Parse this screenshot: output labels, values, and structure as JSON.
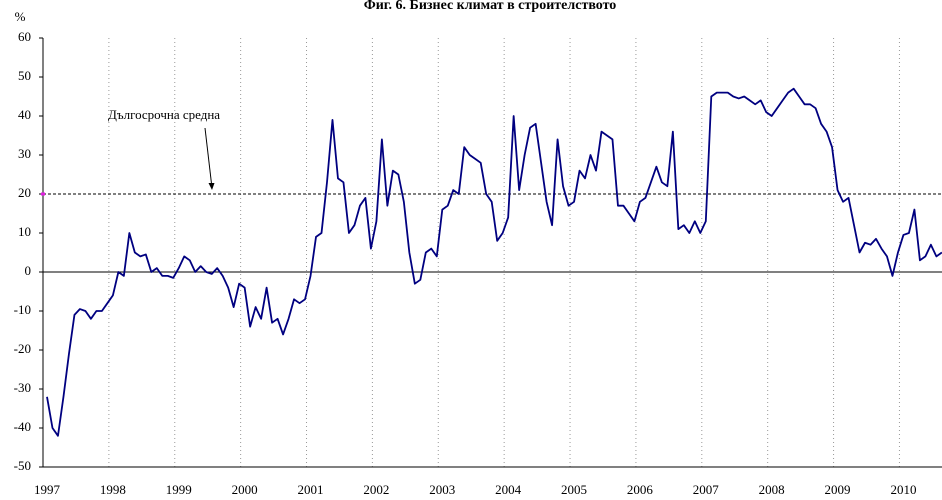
{
  "chart_data": {
    "type": "line",
    "title": "Фиг. 6. Бизнес климат в строителството",
    "ylabel": "%",
    "categories": [
      "1997",
      null,
      null,
      null,
      null,
      null,
      null,
      null,
      null,
      null,
      null,
      null,
      "1998",
      null,
      null,
      null,
      null,
      null,
      null,
      null,
      null,
      null,
      null,
      null,
      "1999",
      null,
      null,
      null,
      null,
      null,
      null,
      null,
      null,
      null,
      null,
      null,
      "2000",
      null,
      null,
      null,
      null,
      null,
      null,
      null,
      null,
      null,
      null,
      null,
      "2001",
      null,
      null,
      null,
      null,
      null,
      null,
      null,
      null,
      null,
      null,
      null,
      "2002",
      null,
      null,
      null,
      null,
      null,
      null,
      null,
      null,
      null,
      null,
      null,
      "2003",
      null,
      null,
      null,
      null,
      null,
      null,
      null,
      null,
      null,
      null,
      null,
      "2004",
      null,
      null,
      null,
      null,
      null,
      null,
      null,
      null,
      null,
      null,
      null,
      "2005",
      null,
      null,
      null,
      null,
      null,
      null,
      null,
      null,
      null,
      null,
      null,
      "2006",
      null,
      null,
      null,
      null,
      null,
      null,
      null,
      null,
      null,
      null,
      null,
      "2007",
      null,
      null,
      null,
      null,
      null,
      null,
      null,
      null,
      null,
      null,
      null,
      "2008",
      null,
      null,
      null,
      null,
      null,
      null,
      null,
      null,
      null,
      null,
      null,
      "2009",
      null,
      null,
      null,
      null,
      null,
      null,
      null,
      null,
      null,
      null,
      null,
      "2010",
      null,
      null,
      null,
      null,
      null,
      null,
      null
    ],
    "series": [
      {
        "name": "Бизнес климат",
        "color": "#000080",
        "values": [
          -32,
          -40,
          -42,
          -32,
          -21,
          -11,
          -9.5,
          -10,
          -12,
          -10,
          -10,
          -8,
          -6,
          0,
          -1,
          10,
          5,
          4,
          4.5,
          0,
          1,
          -1,
          -1,
          -1.5,
          1,
          4,
          3,
          0,
          1.5,
          0,
          -0.5,
          1,
          -1,
          -4,
          -9,
          -3,
          -4,
          -14,
          -9,
          -12,
          -4,
          -13,
          -12,
          -16,
          -12,
          -7,
          -8,
          -7,
          -1,
          9,
          10,
          23,
          39,
          24,
          23,
          10,
          12,
          17,
          19,
          6,
          13,
          34,
          17,
          26,
          25,
          18,
          5,
          -3,
          -2,
          5,
          6,
          4,
          16,
          17,
          21,
          20,
          32,
          30,
          29,
          28,
          20,
          18,
          8,
          10,
          14,
          40,
          21,
          30,
          37,
          38,
          28,
          18,
          12,
          34,
          22,
          17,
          18,
          26,
          24,
          30,
          26,
          36,
          35,
          34,
          17,
          17,
          15,
          13,
          18,
          19,
          23,
          27,
          23,
          22,
          36,
          11,
          12,
          10,
          13,
          10,
          13,
          45,
          46,
          46,
          46,
          45,
          44.5,
          45,
          44,
          43,
          44,
          41,
          40,
          42,
          44,
          46,
          47,
          45,
          43,
          43,
          42,
          38,
          36,
          32,
          21,
          18,
          19,
          12,
          5,
          7.5,
          7,
          8.5,
          6,
          4,
          -1,
          5,
          9.5,
          10,
          16,
          3,
          4,
          7,
          4,
          5
        ]
      }
    ],
    "average": {
      "label": "Дългосрочна средна",
      "value": 20,
      "color": "#000000"
    },
    "ylim": [
      -50,
      60
    ],
    "yticks": [
      -50,
      -40,
      -30,
      -20,
      -10,
      0,
      10,
      20,
      30,
      40,
      50,
      60
    ]
  }
}
